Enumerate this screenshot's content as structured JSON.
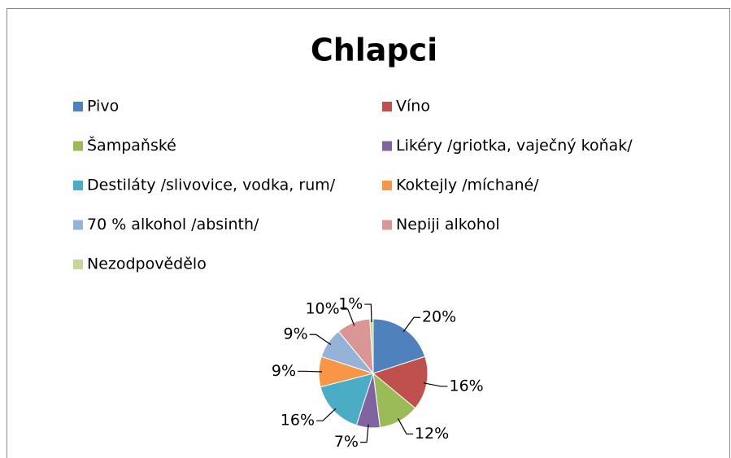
{
  "chart_data": {
    "type": "pie",
    "title": "Chlapci",
    "categories": [
      "Pivo",
      "Víno",
      "Šampaňské",
      "Likéry /griotka,  vaječný koňak/",
      "Destiláty /slivovice, vodka, rum/",
      "Koktejly /míchané/",
      "70 % alkohol /absinth/",
      "Nepiji alkohol",
      "Nezodpovědělo"
    ],
    "values": [
      20,
      16,
      12,
      7,
      16,
      9,
      9,
      10,
      1
    ],
    "value_labels": [
      "20%",
      "16%",
      "12%",
      "7%",
      "16%",
      "9%",
      "9%",
      "10%",
      "1%"
    ],
    "colors": [
      "#4F81BD",
      "#C0504D",
      "#9BBB59",
      "#8064A2",
      "#4BACC6",
      "#F79646",
      "#95B3D7",
      "#D99694",
      "#C3D69B"
    ],
    "legend": "top"
  }
}
